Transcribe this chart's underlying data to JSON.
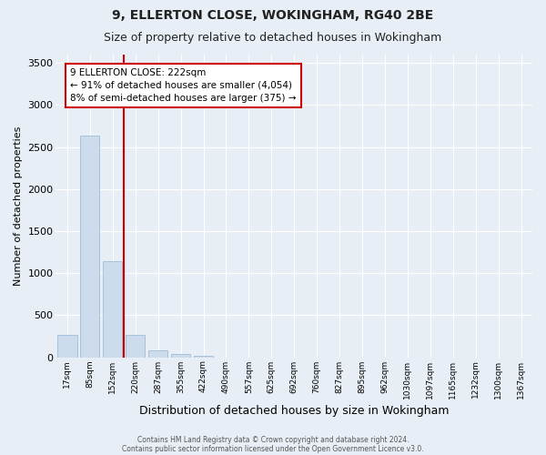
{
  "title1": "9, ELLERTON CLOSE, WOKINGHAM, RG40 2BE",
  "title2": "Size of property relative to detached houses in Wokingham",
  "xlabel": "Distribution of detached houses by size in Wokingham",
  "ylabel": "Number of detached properties",
  "footnote1": "Contains HM Land Registry data © Crown copyright and database right 2024.",
  "footnote2": "Contains public sector information licensed under the Open Government Licence v3.0.",
  "categories": [
    "17sqm",
    "85sqm",
    "152sqm",
    "220sqm",
    "287sqm",
    "355sqm",
    "422sqm",
    "490sqm",
    "557sqm",
    "625sqm",
    "692sqm",
    "760sqm",
    "827sqm",
    "895sqm",
    "962sqm",
    "1030sqm",
    "1097sqm",
    "1165sqm",
    "1232sqm",
    "1300sqm",
    "1367sqm"
  ],
  "values": [
    270,
    2640,
    1140,
    270,
    85,
    40,
    15,
    0,
    0,
    0,
    0,
    0,
    0,
    0,
    0,
    0,
    0,
    0,
    0,
    0,
    0
  ],
  "bar_color": "#ccdcec",
  "bar_edge_color": "#9dbdd8",
  "property_line_color": "#cc0000",
  "annotation_box_color": "#cc0000",
  "annotation_text": "9 ELLERTON CLOSE: 222sqm\n← 91% of detached houses are smaller (4,054)\n8% of semi-detached houses are larger (375) →",
  "ylim": [
    0,
    3600
  ],
  "yticks": [
    0,
    500,
    1000,
    1500,
    2000,
    2500,
    3000,
    3500
  ],
  "bg_color": "#e8eef5",
  "plot_bg_color": "#e8eef5",
  "grid_color": "#ffffff",
  "title1_fontsize": 10,
  "title2_fontsize": 9
}
